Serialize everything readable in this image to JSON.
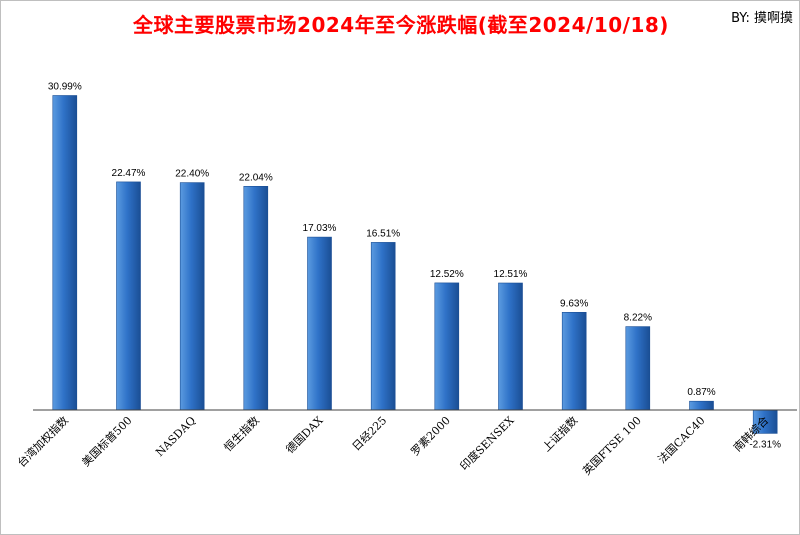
{
  "header": {
    "title": "全球主要股票市场2024年至今涨跌幅(截至2024/10/18)",
    "byline": "BY: 摸啊摸"
  },
  "colors": {
    "bar_top": "#5b9be0",
    "bar_mid": "#2f72c8",
    "bar_dark": "#1a4e94",
    "title": "#ff0000",
    "axis": "#404040"
  },
  "chart_data": {
    "type": "bar",
    "title": "全球主要股票市场2024年至今涨跌幅(截至2024/10/18)",
    "xlabel": "",
    "ylabel": "",
    "unit": "%",
    "ylim": [
      -4,
      33
    ],
    "grid": false,
    "legend": "none",
    "categories": [
      "台湾加权指数",
      "美国标普500",
      "NASDAQ",
      "恒生指数",
      "德国DAX",
      "日经225",
      "罗素2000",
      "印度SENSEX",
      "上证指数",
      "英国FTSE 100",
      "法国CAC40",
      "南韩综合"
    ],
    "values": [
      30.99,
      22.47,
      22.4,
      22.04,
      17.03,
      16.51,
      12.52,
      12.51,
      9.63,
      8.22,
      0.87,
      -2.31
    ],
    "value_labels": [
      "30.99%",
      "22.47%",
      "22.40%",
      "22.04%",
      "17.03%",
      "16.51%",
      "12.52%",
      "12.51%",
      "9.63%",
      "8.22%",
      "0.87%",
      "-2.31%"
    ]
  }
}
